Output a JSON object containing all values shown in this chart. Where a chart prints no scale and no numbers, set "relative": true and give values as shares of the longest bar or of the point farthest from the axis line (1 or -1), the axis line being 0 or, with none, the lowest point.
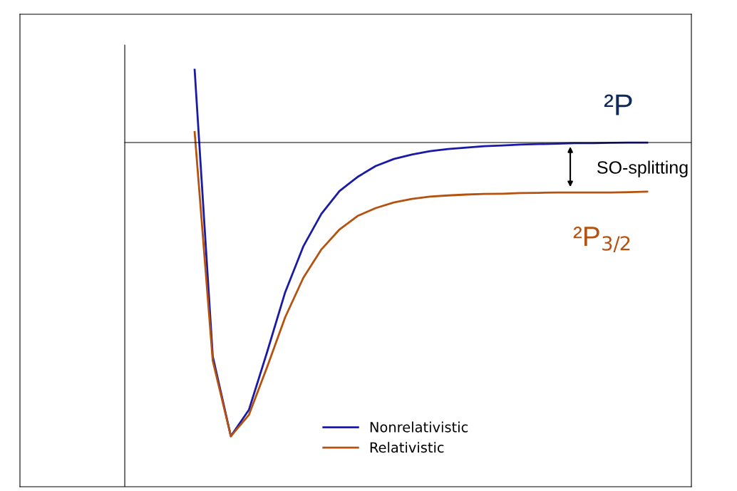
{
  "chart_data": {
    "type": "line",
    "relative": true,
    "categories": [
      null,
      null,
      null,
      null,
      null,
      null,
      null,
      null,
      null,
      null,
      null,
      null,
      null,
      null,
      null,
      null,
      null,
      null,
      null,
      null,
      null,
      null,
      null,
      null,
      null,
      null
    ],
    "series": [
      {
        "name": "Nonrelativistic",
        "color": "#1a1aa6",
        "values": [
          0.248,
          -0.728,
          -1,
          -0.91,
          -0.714,
          -0.51,
          -0.354,
          -0.243,
          -0.165,
          -0.117,
          -0.08,
          -0.056,
          -0.041,
          -0.029,
          -0.022,
          -0.017,
          -0.012,
          -0.01,
          -0.007,
          -0.005,
          -0.004,
          -0.002,
          -0.002,
          -0.001,
          0,
          0
        ]
      },
      {
        "name": "Relativistic",
        "color": "#b5520f",
        "values": [
          0.036,
          -0.743,
          -1,
          -0.927,
          -0.765,
          -0.595,
          -0.461,
          -0.364,
          -0.296,
          -0.25,
          -0.223,
          -0.204,
          -0.192,
          -0.184,
          -0.18,
          -0.177,
          -0.175,
          -0.174,
          -0.172,
          -0.171,
          -0.17,
          -0.17,
          -0.17,
          -0.17,
          -0.169,
          -0.167
        ]
      }
    ],
    "annotations": [
      "²P",
      "SO-splitting",
      "²P$_{3/2}$"
    ],
    "legend": "bottom",
    "marker": "none",
    "line_style": "solid"
  }
}
